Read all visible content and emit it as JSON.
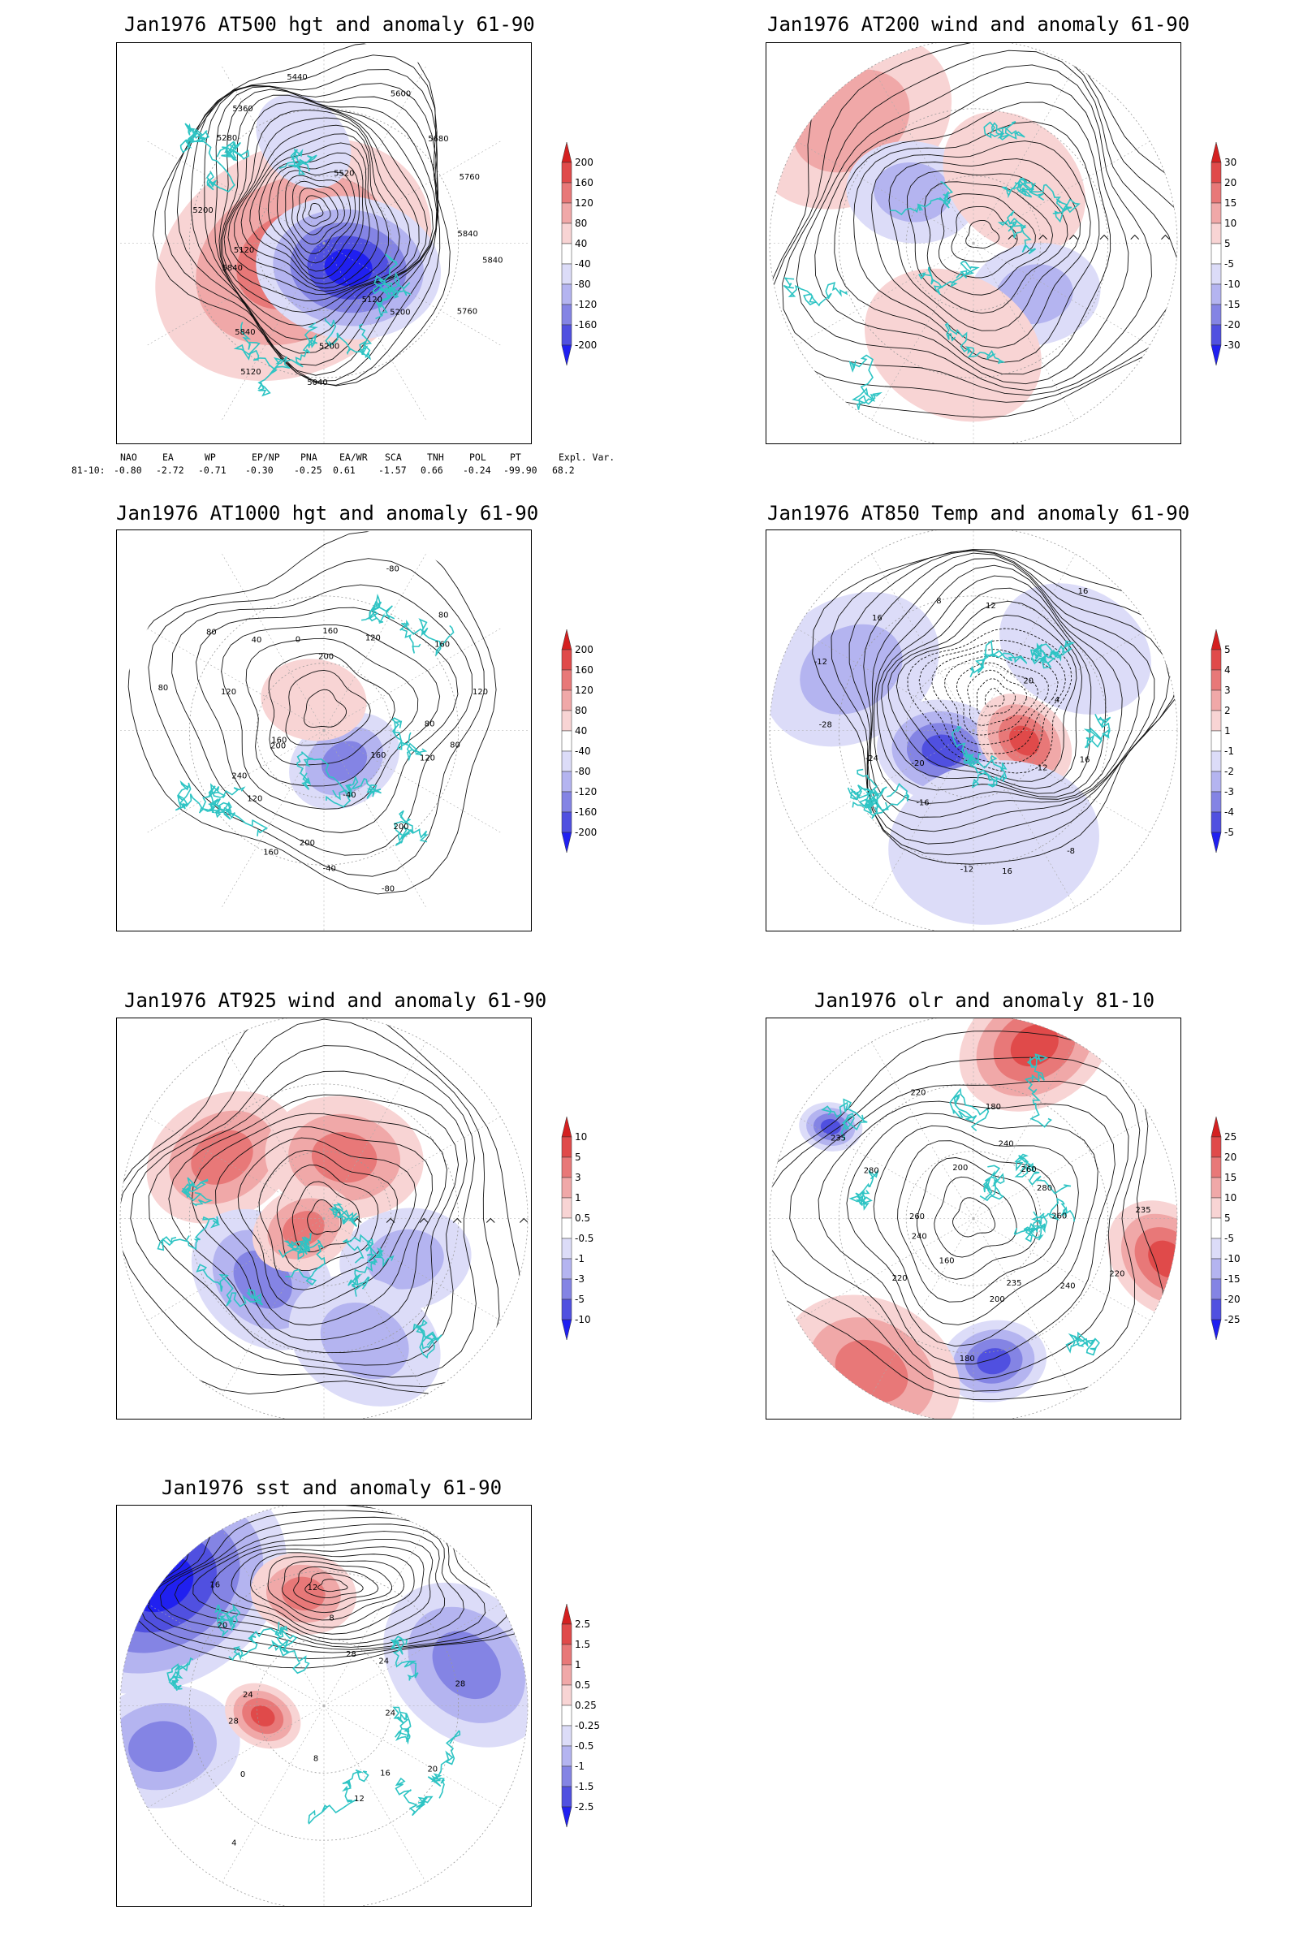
{
  "panels": [
    {
      "id": "p1",
      "title": "Jan1976 AT500 hgt and anomaly 61-90",
      "colorbar": {
        "labels": [
          "200",
          "160",
          "120",
          "80",
          "40",
          "-40",
          "-80",
          "-120",
          "-160",
          "-200"
        ]
      },
      "contour_labels": [
        "5840",
        "5760",
        "5200",
        "5120",
        "5200",
        "5040",
        "5120",
        "5840",
        "5840",
        "5120",
        "5200",
        "5280",
        "5360",
        "5440",
        "5520",
        "5600",
        "5680",
        "5760",
        "5840"
      ]
    },
    {
      "id": "p2",
      "title": "Jan1976 AT200 wind and anomaly 61-90",
      "colorbar": {
        "labels": [
          "30",
          "20",
          "15",
          "10",
          "5",
          "-5",
          "-10",
          "-15",
          "-20",
          "-30"
        ]
      },
      "contour_labels": []
    },
    {
      "id": "p3",
      "title": "Jan1976 AT1000 hgt and anomaly 61-90",
      "colorbar": {
        "labels": [
          "200",
          "160",
          "120",
          "80",
          "40",
          "-40",
          "-80",
          "-120",
          "-160",
          "-200"
        ]
      },
      "contour_labels": [
        "80",
        "120",
        "160",
        "200",
        "-80",
        "-40",
        "-40",
        "200",
        "160",
        "120",
        "240",
        "200",
        "160",
        "80",
        "120",
        "80",
        "40",
        "0",
        "200",
        "160",
        "-80",
        "120",
        "80",
        "160",
        "120",
        "80"
      ]
    },
    {
      "id": "p4",
      "title": "Jan1976 AT850 Temp and anomaly 61-90",
      "colorbar": {
        "labels": [
          "5",
          "4",
          "3",
          "2",
          "1",
          "-1",
          "-2",
          "-3",
          "-4",
          "-5"
        ]
      },
      "contour_labels": [
        "16",
        "12",
        "-8",
        "16",
        "-12",
        "-16",
        "-20",
        "-24",
        "-28",
        "-12",
        "16",
        "8",
        "12",
        "16",
        "20",
        "4"
      ]
    },
    {
      "id": "p5",
      "title": "Jan1976 AT925 wind and anomaly 61-90",
      "colorbar": {
        "labels": [
          "10",
          "5",
          "3",
          "1",
          "0.5",
          "-0.5",
          "-1",
          "-3",
          "-5",
          "-10"
        ]
      },
      "contour_labels": []
    },
    {
      "id": "p6",
      "title": "Jan1976 olr and anomaly 81-10",
      "colorbar": {
        "labels": [
          "25",
          "20",
          "15",
          "10",
          "5",
          "-5",
          "-10",
          "-15",
          "-20",
          "-25"
        ]
      },
      "contour_labels": [
        "260",
        "220",
        "240",
        "235",
        "200",
        "180",
        "160",
        "220",
        "240",
        "260",
        "280",
        "235",
        "220",
        "200",
        "180",
        "240",
        "260",
        "280",
        "235"
      ]
    },
    {
      "id": "p7",
      "title": "Jan1976 sst and anomaly 61-90",
      "colorbar": {
        "labels": [
          "2.5",
          "1.5",
          "1",
          "0.5",
          "0.25",
          "-0.25",
          "-0.5",
          "-1",
          "-1.5",
          "-2.5"
        ]
      },
      "contour_labels": [
        "24",
        "20",
        "16",
        "12",
        "8",
        "4",
        "0",
        "28",
        "24",
        "20",
        "16",
        "12",
        "8",
        "28",
        "24",
        "28"
      ]
    }
  ],
  "indices": {
    "header": [
      "NAO",
      "EA",
      "WP",
      "EP/NP",
      "PNA",
      "EA/WR",
      "SCA",
      "TNH",
      "POL",
      "PT",
      "Expl. Var."
    ],
    "row_label": "81-10:",
    "values": [
      "-0.80",
      "-2.72",
      "-0.71",
      "-0.30",
      "-0.25",
      "0.61",
      "-1.57",
      "0.66",
      "-0.24",
      "-99.90",
      "68.2"
    ]
  },
  "colors": {
    "coast": "#2ec4c4",
    "pos": [
      "#f8d4d4",
      "#f0a8a8",
      "#e87878",
      "#e04a4a",
      "#d42020"
    ],
    "neg": [
      "#dcdcf8",
      "#b4b4f0",
      "#8484e4",
      "#5050e0",
      "#2020f0"
    ]
  }
}
